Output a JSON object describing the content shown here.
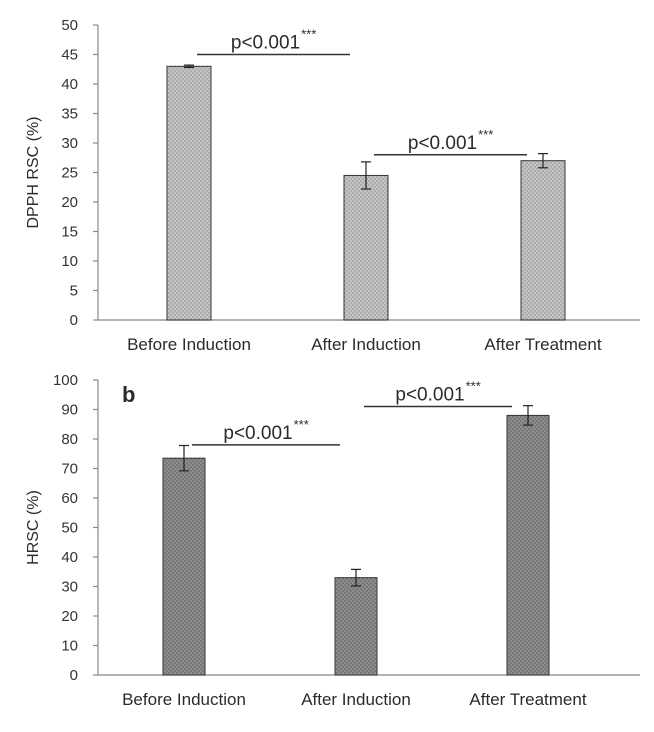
{
  "chart_data": [
    {
      "type": "bar",
      "panel_label": "",
      "ylabel": "DPPH RSC (%)",
      "xlabel": "",
      "categories": [
        "Before Induction",
        "After Induction",
        "After Treatment"
      ],
      "values": [
        43,
        24.5,
        27
      ],
      "errors": [
        0.2,
        2.3,
        1.2
      ],
      "ylim": [
        0,
        50
      ],
      "ytick_step": 5,
      "bar_fill": "#c4c4c4",
      "bar_dot": "#8a8a8a",
      "grid": false,
      "significance": [
        {
          "from": 0,
          "to": 1,
          "value": 45,
          "text": "p<0.001",
          "stars": "***"
        },
        {
          "from": 1,
          "to": 2,
          "value": 28,
          "text": "p<0.001",
          "stars": "***"
        }
      ]
    },
    {
      "type": "bar",
      "panel_label": "b",
      "ylabel": "HRSC (%)",
      "xlabel": "",
      "categories": [
        "Before Induction",
        "After Induction",
        "After Treatment"
      ],
      "values": [
        73.5,
        33,
        88
      ],
      "errors": [
        4.3,
        2.8,
        3.3
      ],
      "ylim": [
        0,
        100
      ],
      "ytick_step": 10,
      "bar_fill": "#8e8e8e",
      "bar_dot": "#555555",
      "grid": false,
      "significance": [
        {
          "from": 0,
          "to": 1,
          "value": 78,
          "text": "p<0.001",
          "stars": "***"
        },
        {
          "from": 1,
          "to": 2,
          "value": 91,
          "text": "p<0.001",
          "stars": "***"
        }
      ]
    }
  ]
}
